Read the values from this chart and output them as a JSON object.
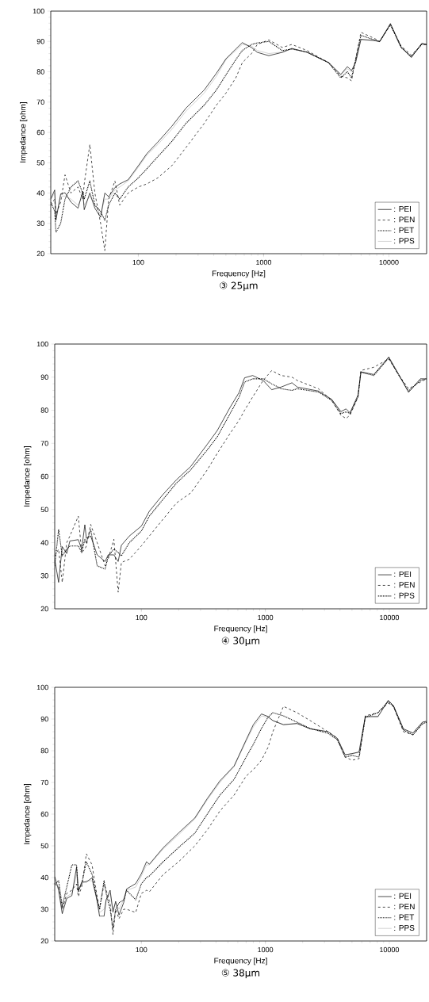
{
  "chart_data": [
    {
      "type": "line",
      "title": "③ 25μm",
      "xlabel": "Frequency [Hz]",
      "ylabel": "Impedance [ohm]",
      "log": "x",
      "xlim": [
        20,
        20000
      ],
      "ylim": [
        20,
        100
      ],
      "xticks": [
        100,
        1000,
        10000
      ],
      "yticks": [
        20,
        30,
        40,
        50,
        60,
        70,
        80,
        90,
        100
      ],
      "grid": false,
      "legend": "bottom right",
      "marker": "none",
      "x": [
        20,
        21.5,
        22,
        24,
        26,
        29,
        33,
        36,
        37,
        41,
        45,
        50,
        54,
        58,
        65,
        71,
        83,
        100,
        117,
        143,
        185,
        240,
        336,
        420,
        501,
        600,
        676,
        800,
        890,
        1100,
        1410,
        1680,
        2220,
        3300,
        4130,
        4660,
        5030,
        5420,
        5980,
        7660,
        8440,
        10280,
        12500,
        15100,
        18300,
        20000
      ],
      "series": [
        {
          "name": ": PEI",
          "color": "#000000",
          "line_style": "solid",
          "values": [
            38,
            41,
            31,
            39.7,
            40.1,
            37,
            35,
            40.5,
            34.5,
            40,
            35,
            32,
            40,
            38.8,
            41.8,
            43,
            44.4,
            49,
            53,
            56.8,
            62,
            68,
            74,
            79.5,
            84.3,
            87.5,
            89.6,
            88,
            86.4,
            85.3,
            86.4,
            87.7,
            86.4,
            83,
            79.1,
            81.7,
            80.4,
            83,
            90.7,
            90.3,
            89.9,
            95.9,
            88.2,
            84.7,
            89.4,
            89
          ]
        },
        {
          "name": ": PEN",
          "color": "#000000",
          "line_style": "dashed",
          "values": [
            36,
            38,
            33,
            37,
            46,
            40,
            42,
            38,
            43,
            56,
            40,
            30,
            21,
            38,
            44,
            36,
            40,
            42,
            43,
            45,
            49,
            55,
            63,
            69,
            73,
            78,
            83,
            86,
            89,
            90.5,
            88,
            89,
            87,
            83,
            78.5,
            78,
            77,
            84,
            93,
            91,
            90,
            95.5,
            88.5,
            85.5,
            89,
            89
          ]
        },
        {
          "name": ": PET",
          "color": "#000000",
          "line_style": "dotted",
          "values": [
            37,
            34,
            27,
            30,
            38,
            42,
            44,
            40,
            38,
            44,
            36,
            34,
            31,
            36,
            40,
            38,
            42,
            45,
            48,
            52,
            57,
            63,
            69,
            74,
            79,
            84,
            87,
            89,
            89.5,
            90,
            87,
            87.5,
            86.5,
            83,
            78,
            80,
            78,
            84,
            92,
            90.5,
            90,
            95.5,
            88,
            85,
            89,
            89
          ]
        },
        {
          "name": ": PPS",
          "color": "#c0c0c0",
          "line_style": "solid",
          "values": [
            38,
            40,
            32,
            39,
            39,
            38,
            36,
            39,
            36,
            39,
            36,
            33,
            38,
            38,
            41,
            42,
            44,
            48.5,
            52.5,
            56,
            61,
            67,
            73,
            78.5,
            84,
            87,
            89,
            88.5,
            87,
            86,
            86.5,
            87.5,
            86.5,
            83,
            79,
            81,
            80,
            83,
            90.5,
            90.3,
            90,
            95.8,
            88.3,
            84.8,
            89.3,
            89
          ]
        }
      ]
    },
    {
      "type": "line",
      "title": "④ 30μm",
      "xlabel": "Frequency [Hz]",
      "ylabel": "Impedance [ohm]",
      "log": "x",
      "xlim": [
        20,
        20000
      ],
      "ylim": [
        20,
        100
      ],
      "xticks": [
        100,
        1000,
        10000
      ],
      "yticks": [
        20,
        30,
        40,
        50,
        60,
        70,
        80,
        90,
        100
      ],
      "grid": false,
      "legend": "bottom right",
      "marker": "none",
      "x": [
        20,
        21.5,
        23,
        25,
        26.5,
        31,
        33,
        35,
        36,
        39,
        44,
        51,
        54,
        60,
        65,
        69,
        80,
        100,
        116,
        149,
        192,
        250,
        340,
        410,
        520,
        615,
        680,
        790,
        960,
        1125,
        1340,
        1640,
        1810,
        2680,
        3430,
        4070,
        4480,
        4820,
        5590,
        5900,
        7500,
        9900,
        11750,
        14300,
        17800,
        20000
      ],
      "series": [
        {
          "name": ": PEI",
          "color": "#000000",
          "line_style": "solid",
          "values": [
            35,
            28,
            38.8,
            36.7,
            40.5,
            40.9,
            38,
            45.4,
            41.3,
            42,
            36.3,
            34.3,
            36.3,
            36.3,
            34.3,
            39.2,
            42,
            45,
            49.5,
            54.5,
            59,
            63,
            69.7,
            73.9,
            80.9,
            85.4,
            89.8,
            90.5,
            89,
            86.2,
            87,
            88.3,
            87,
            85.8,
            83.3,
            79.6,
            80.4,
            79.2,
            84.6,
            91.6,
            90.8,
            96.1,
            91.2,
            85.4,
            89.5,
            89.5
          ]
        },
        {
          "name": ": PEN",
          "color": "#000000",
          "line_style": "dashed",
          "values": [
            36,
            38,
            28,
            40,
            42,
            48,
            37,
            38,
            39,
            45.5,
            40,
            33,
            35,
            41,
            25,
            34,
            35,
            39,
            42,
            47,
            52,
            55,
            62,
            67,
            73,
            77,
            80,
            84,
            89,
            92,
            90.5,
            90,
            89,
            86.5,
            83,
            78.5,
            77.5,
            78.5,
            84,
            92,
            93,
            95.5,
            91,
            86.5,
            88.5,
            89.5
          ]
        },
        {
          "name": ": PPS",
          "color": "#000000",
          "line_style": "dotted",
          "values": [
            33,
            44,
            36,
            38,
            39,
            39,
            37,
            41,
            40,
            44,
            33,
            32,
            36,
            38,
            37,
            36,
            40,
            43.5,
            48,
            53,
            58,
            62,
            68,
            72,
            79,
            84,
            88.5,
            89.5,
            89.5,
            88,
            86.5,
            86,
            86.5,
            85.5,
            83,
            79,
            79.5,
            79,
            84,
            91.5,
            90.5,
            95.8,
            91,
            85.8,
            89,
            89.5
          ]
        }
      ]
    },
    {
      "type": "line",
      "title": "⑤ 38μm",
      "xlabel": "Frequency [Hz]",
      "ylabel": "Impedance [ohm]",
      "log": "x",
      "xlim": [
        20,
        20000
      ],
      "ylim": [
        20,
        100
      ],
      "xticks": [
        100,
        1000,
        10000
      ],
      "yticks": [
        20,
        30,
        40,
        50,
        60,
        70,
        80,
        90,
        100
      ],
      "grid": false,
      "legend": "bottom right",
      "marker": "none",
      "x": [
        20,
        21.5,
        23,
        25,
        27.5,
        30,
        31,
        33,
        36,
        40,
        44,
        46,
        50,
        52,
        56,
        59,
        62,
        66,
        72,
        76,
        90,
        100,
        110,
        116,
        150,
        200,
        270,
        340,
        430,
        560,
        700,
        800,
        930,
        1050,
        1150,
        1400,
        1800,
        2300,
        3200,
        3800,
        4400,
        5000,
        5700,
        6400,
        8100,
        9800,
        10800,
        13000,
        15500,
        18500,
        20000
      ],
      "series": [
        {
          "name": ": PEI",
          "color": "#000000",
          "line_style": "solid",
          "values": [
            40.3,
            36,
            28.6,
            33.4,
            34.3,
            43.3,
            35.5,
            38.6,
            38.6,
            39.9,
            32.5,
            27.8,
            27.8,
            33,
            36,
            29.1,
            32.5,
            28.2,
            32.1,
            36.4,
            38.1,
            41.2,
            45,
            44.2,
            49.4,
            54.1,
            58.8,
            64.9,
            70.5,
            75.2,
            83.4,
            88.2,
            91.6,
            90.8,
            89.5,
            88.2,
            88.6,
            86.9,
            86,
            83.9,
            78.7,
            79.1,
            79.6,
            90.8,
            90.8,
            95.9,
            94.2,
            86.9,
            85.6,
            89,
            89.3
          ]
        },
        {
          "name": ": PEN",
          "color": "#000000",
          "line_style": "dashed",
          "values": [
            38,
            37,
            30,
            35,
            36,
            38,
            34,
            37,
            47.5,
            44,
            34,
            30,
            38,
            36,
            32,
            22,
            30,
            27,
            30,
            30,
            29,
            35,
            36,
            35.5,
            41,
            45,
            50,
            55,
            61,
            66,
            72,
            74,
            77,
            81,
            86,
            94,
            92,
            89.5,
            86,
            84,
            78,
            77,
            77.5,
            91,
            92,
            95,
            94,
            86,
            85,
            88.5,
            89
          ]
        },
        {
          "name": ": PET",
          "color": "#000000",
          "line_style": "dotted",
          "values": [
            38,
            39,
            31,
            37,
            44,
            44,
            36,
            38,
            45,
            41,
            33,
            30,
            39,
            35,
            30,
            24,
            30,
            32,
            33,
            36,
            33,
            38,
            40,
            40.5,
            45,
            49.5,
            54,
            60,
            66,
            71,
            78,
            82,
            87,
            90.5,
            92,
            91,
            89,
            87,
            85.5,
            83.5,
            78,
            78.5,
            78,
            90.5,
            92,
            95.5,
            94,
            86.5,
            85,
            88.5,
            89
          ]
        },
        {
          "name": ": PPS",
          "color": "#c0c0c0",
          "line_style": "solid",
          "values": [
            39,
            37,
            30,
            34,
            35,
            41,
            36,
            38,
            39,
            39,
            33,
            29,
            30,
            33,
            35,
            30,
            32,
            30,
            33,
            36,
            37,
            40.5,
            44,
            44,
            49,
            53.5,
            58.5,
            64.5,
            70,
            75,
            83,
            87.5,
            91,
            90.5,
            89.5,
            88.3,
            88.5,
            87,
            86,
            84,
            78.8,
            79,
            79.4,
            90.5,
            90.6,
            95.8,
            94,
            86.7,
            85.5,
            89,
            89.2
          ]
        }
      ]
    }
  ]
}
